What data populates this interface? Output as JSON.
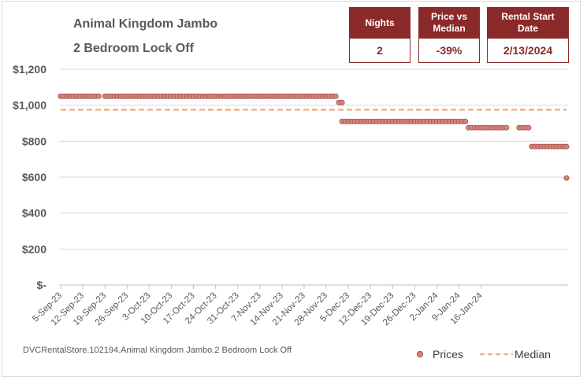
{
  "chart_data": {
    "type": "scatter",
    "title": "Animal Kingdom Jambo",
    "subtitle": "2 Bedroom Lock Off",
    "ylim": [
      0,
      1200
    ],
    "y_ticks": [
      "$-",
      "$200",
      "$400",
      "$600",
      "$800",
      "$1,000",
      "$1,200"
    ],
    "x_ticks": [
      "5-Sep-23",
      "12-Sep-23",
      "19-Sep-23",
      "26-Sep-23",
      "3-Oct-23",
      "10-Oct-23",
      "17-Oct-23",
      "24-Oct-23",
      "31-Oct-23",
      "7-Nov-23",
      "14-Nov-23",
      "21-Nov-23",
      "28-Nov-23",
      "5-Dec-23",
      "12-Dec-23",
      "19-Dec-23",
      "26-Dec-23",
      "2-Jan-24",
      "9-Jan-24",
      "16-Jan-24"
    ],
    "x_start": "2023-09-05",
    "series": [
      {
        "name": "Prices",
        "color": "#d9827a",
        "segments": [
          {
            "from_day": 0,
            "to_day": 12,
            "value": 1050
          },
          {
            "from_day": 14,
            "to_day": 87,
            "value": 1050
          },
          {
            "from_day": 88,
            "to_day": 89,
            "value": 1015
          },
          {
            "from_day": 89,
            "to_day": 128,
            "value": 910
          },
          {
            "from_day": 129,
            "to_day": 141,
            "value": 875
          },
          {
            "from_day": 145,
            "to_day": 148,
            "value": 875
          },
          {
            "from_day": 149,
            "to_day": 160,
            "value": 770
          }
        ],
        "extra_points": [
          {
            "day": 160,
            "value": 595
          }
        ]
      },
      {
        "name": "Median",
        "color": "#f4b183",
        "style": "dashed",
        "value": 975
      }
    ],
    "legend": [
      "Prices",
      "Median"
    ]
  },
  "stats": {
    "nights_label": "Nights",
    "nights_value": "2",
    "price_label": "Price vs Median",
    "price_value": "-39%",
    "date_label": "Rental Start Date",
    "date_value": "2/13/2024"
  },
  "footer": "DVCRentalStore.102194.Animal Kingdom Jambo.2 Bedroom Lock Off",
  "colors": {
    "accent": "#8b2a2a",
    "point_fill": "#d9827a",
    "median": "#f4b183"
  }
}
